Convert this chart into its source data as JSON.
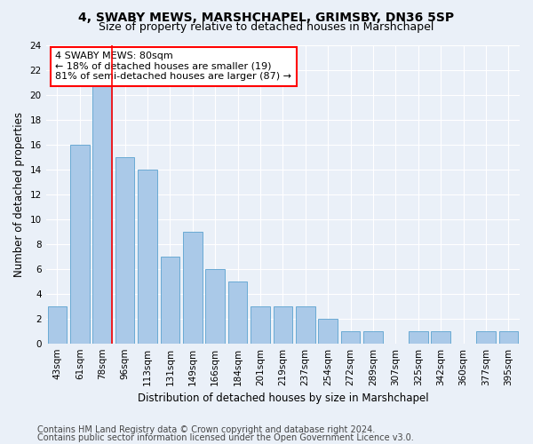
{
  "title1": "4, SWABY MEWS, MARSHCHAPEL, GRIMSBY, DN36 5SP",
  "title2": "Size of property relative to detached houses in Marshchapel",
  "xlabel": "Distribution of detached houses by size in Marshchapel",
  "ylabel": "Number of detached properties",
  "categories": [
    "43sqm",
    "61sqm",
    "78sqm",
    "96sqm",
    "113sqm",
    "131sqm",
    "149sqm",
    "166sqm",
    "184sqm",
    "201sqm",
    "219sqm",
    "237sqm",
    "254sqm",
    "272sqm",
    "289sqm",
    "307sqm",
    "325sqm",
    "342sqm",
    "360sqm",
    "377sqm",
    "395sqm"
  ],
  "values": [
    3,
    16,
    21,
    15,
    14,
    7,
    9,
    6,
    5,
    3,
    3,
    3,
    2,
    1,
    1,
    0,
    1,
    1,
    0,
    1,
    1
  ],
  "bar_color": "#aac9e8",
  "bar_edge_color": "#6aaad4",
  "vline_x_index": 2,
  "annotation_text_line1": "4 SWABY MEWS: 80sqm",
  "annotation_text_line2": "← 18% of detached houses are smaller (19)",
  "annotation_text_line3": "81% of semi-detached houses are larger (87) →",
  "annotation_box_color": "white",
  "annotation_box_edge_color": "red",
  "vline_color": "red",
  "ylim": [
    0,
    24
  ],
  "yticks": [
    0,
    2,
    4,
    6,
    8,
    10,
    12,
    14,
    16,
    18,
    20,
    22,
    24
  ],
  "ytick_labels": [
    "0",
    "2",
    "4",
    "6",
    "8",
    "10",
    "12",
    "14",
    "16",
    "18",
    "20",
    "22",
    "24"
  ],
  "footer1": "Contains HM Land Registry data © Crown copyright and database right 2024.",
  "footer2": "Contains public sector information licensed under the Open Government Licence v3.0.",
  "background_color": "#eaf0f8",
  "plot_background_color": "#eaf0f8",
  "grid_color": "#ffffff",
  "title_fontsize": 10,
  "subtitle_fontsize": 9,
  "axis_label_fontsize": 8.5,
  "tick_fontsize": 7.5,
  "annotation_fontsize": 8,
  "footer_fontsize": 7
}
